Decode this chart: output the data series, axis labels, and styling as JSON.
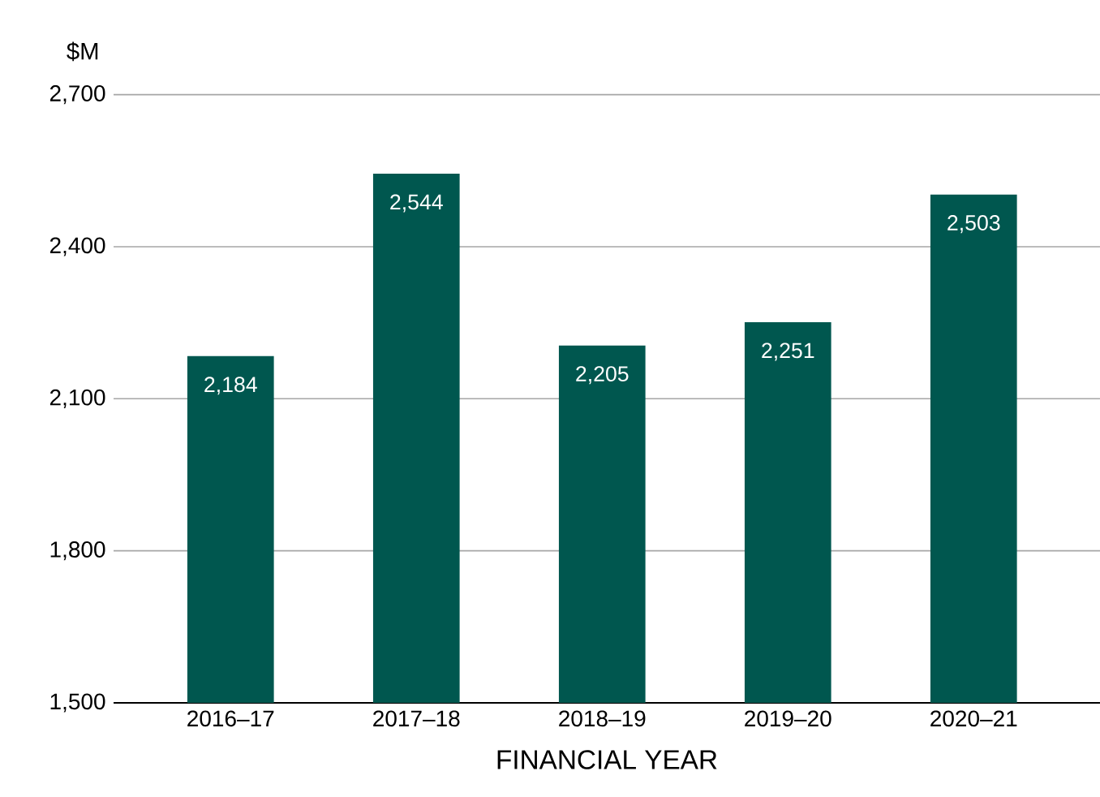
{
  "chart_data": {
    "type": "bar",
    "ylabel": "$M",
    "xlabel": "FINANCIAL YEAR",
    "categories": [
      "2016–17",
      "2017–18",
      "2018–19",
      "2019–20",
      "2020–21"
    ],
    "values": [
      2184,
      2544,
      2205,
      2251,
      2503
    ],
    "value_labels": [
      "2,184",
      "2,544",
      "2,205",
      "2,251",
      "2,503"
    ],
    "color": "#00574f",
    "ylim": [
      1500,
      2700
    ],
    "yticks": [
      {
        "value": 1500,
        "label": "1,500"
      },
      {
        "value": 1800,
        "label": "1,800"
      },
      {
        "value": 2100,
        "label": "2,100"
      },
      {
        "value": 2400,
        "label": "2,400"
      },
      {
        "value": 2700,
        "label": "2,700"
      }
    ],
    "grid": "y"
  }
}
